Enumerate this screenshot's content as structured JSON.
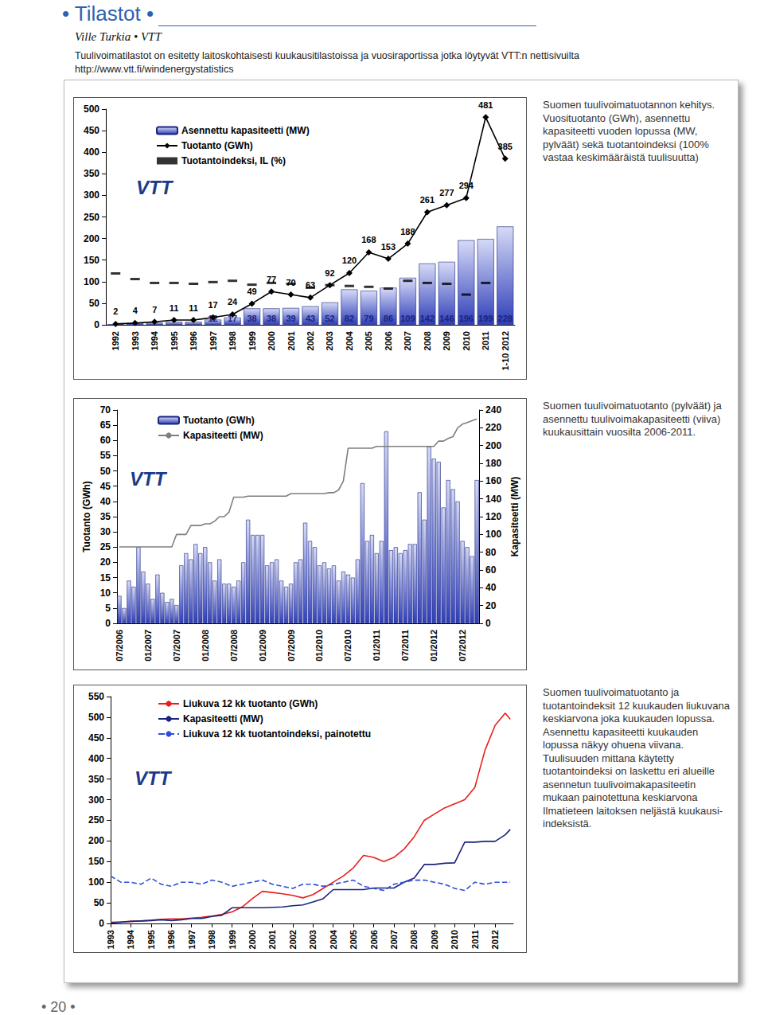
{
  "page": {
    "section": "• Tilastot •",
    "byline": "Ville Turkia • VTT",
    "intro": "Tuulivoimatilastot on esitetty laitoskohtaisesti kuukausitilastoissa ja vuosiraportissa jotka löytyvät VTT:n nettisivuilta http://www.vtt.fi/windenergystatistics",
    "page_number": "• 20 •",
    "logo": "VTT",
    "captions": [
      "Suomen tuulivoimatuotannon kehitys. Vuosituotanto (GWh), asennettu kapasiteetti vuoden lopussa (MW, pylväät) sekä tuotantoindeksi (100% vastaa keskimääräistä tuulisuutta)",
      "Suomen tuulivoimatuotanto (pylväät) ja asennettu tuulivoimakapasiteetti (viiva) kuukausittain vuosilta 2006-2011.",
      "Suomen tuulivoimatuotanto ja tuotantoindeksit 12 kuukauden liukuvana keskiarvona joka kuukauden lopussa. Asennettu kapasiteetti kuukauden lopussa näkyy ohuena viivana. Tuulisuuden mittana käytetty tuotantoindeksi on laskettu eri alueille asennetun tuulivoimakapasiteetin mukaan painotettuna keskiarvona Ilmatieteen laitoksen neljästä kuukausi-indeksistä."
    ]
  },
  "chart_data": [
    {
      "type": "bar",
      "categories": [
        "1992",
        "1993",
        "1994",
        "1995",
        "1996",
        "1997",
        "1998",
        "1999",
        "2000",
        "2001",
        "2002",
        "2003",
        "2004",
        "2005",
        "2006",
        "2007",
        "2008",
        "2009",
        "2010",
        "2011",
        "1-10 2012"
      ],
      "series": [
        {
          "name": "Asennettu kapasiteetti (MW)",
          "type": "bar",
          "color": "#2f3fb8",
          "data_labels": true,
          "values": [
            1,
            4,
            5,
            7,
            7,
            12,
            17,
            38,
            38,
            39,
            43,
            52,
            82,
            79,
            86,
            109,
            142,
            146,
            196,
            199,
            228
          ],
          "value_labels": [
            null,
            null,
            null,
            null,
            null,
            "12",
            "17",
            "38",
            "38",
            "39",
            "43",
            "52",
            "82",
            "79",
            "86",
            "109",
            "142",
            "146",
            "196",
            "199",
            "228"
          ]
        },
        {
          "name": "Tuotanto (GWh)",
          "type": "line",
          "color": "#000000",
          "marker": "diamond",
          "data_labels": true,
          "values": [
            2,
            4,
            7,
            11,
            11,
            17,
            24,
            49,
            77,
            70,
            63,
            92,
            120,
            168,
            153,
            188,
            261,
            277,
            294,
            481,
            385
          ]
        },
        {
          "name": "Tuotantoindeksi, IL (%)",
          "type": "scatter",
          "color": "#000000",
          "marker": "dash",
          "data_labels": false,
          "values": [
            119,
            106,
            97,
            97,
            95,
            99,
            102,
            93,
            97,
            95,
            86,
            92,
            90,
            88,
            84,
            102,
            97,
            95,
            70,
            97,
            null
          ]
        }
      ],
      "ylim": [
        0,
        500
      ],
      "yticks": [
        0,
        50,
        100,
        150,
        200,
        250,
        300,
        350,
        400,
        450,
        500
      ],
      "legend": "upper left",
      "grid": false
    },
    {
      "type": "bar",
      "categories": [
        "07/2006",
        null,
        null,
        null,
        null,
        null,
        "01/2007",
        null,
        null,
        null,
        null,
        null,
        "07/2007",
        null,
        null,
        null,
        null,
        null,
        "01/2008",
        null,
        null,
        null,
        null,
        null,
        "07/2008",
        null,
        null,
        null,
        null,
        null,
        "01/2009",
        null,
        null,
        null,
        null,
        null,
        "07/2009",
        null,
        null,
        null,
        null,
        null,
        "01/2010",
        null,
        null,
        null,
        null,
        null,
        "07/2010",
        null,
        null,
        null,
        null,
        null,
        "01/2011",
        null,
        null,
        null,
        null,
        null,
        "07/2011",
        null,
        null,
        null,
        null,
        null,
        "01/2012",
        null,
        null,
        null,
        null,
        null,
        "07/2012",
        null,
        null,
        null
      ],
      "series": [
        {
          "name": "Tuotanto (GWh)",
          "type": "bar",
          "color": "#2f3fb8",
          "values": [
            9,
            5,
            14,
            12,
            25,
            17,
            13,
            8,
            16,
            10,
            7,
            8,
            6,
            19,
            23,
            21,
            26,
            23,
            25,
            20,
            14,
            21,
            13,
            13,
            12,
            14,
            20,
            34,
            29,
            29,
            29,
            19,
            20,
            21,
            14,
            12,
            13,
            20,
            21,
            33,
            27,
            25,
            19,
            20,
            18,
            19,
            14,
            17,
            16,
            15,
            21,
            46,
            27,
            29,
            23,
            27,
            63,
            24,
            25,
            23,
            24,
            26,
            26,
            43,
            34,
            58,
            54,
            53,
            38,
            47,
            44,
            40,
            27,
            25,
            22,
            47
          ]
        },
        {
          "name": "Kapasiteetti (MW)",
          "type": "line",
          "color": "#7f7f7f",
          "axis": "y2",
          "values": [
            86,
            86,
            86,
            86,
            86,
            86,
            86,
            86,
            86,
            86,
            86,
            86,
            100,
            100,
            100,
            110,
            110,
            110,
            112,
            112,
            115,
            120,
            120,
            125,
            142,
            142,
            142,
            143,
            143,
            143,
            143,
            143,
            143,
            143,
            143,
            143,
            146,
            146,
            146,
            146,
            146,
            146,
            146,
            146,
            147,
            147,
            150,
            160,
            197,
            197,
            197,
            197,
            197,
            197,
            199,
            199,
            199,
            199,
            199,
            199,
            199,
            199,
            199,
            199,
            199,
            199,
            199,
            205,
            205,
            208,
            210,
            220,
            224,
            226,
            228,
            230
          ]
        }
      ],
      "ylabel": "Tuotanto (GWh)",
      "ylim": [
        0,
        70
      ],
      "yticks": [
        0,
        5,
        10,
        15,
        20,
        25,
        30,
        35,
        40,
        45,
        50,
        55,
        60,
        65,
        70
      ],
      "y2label": "Kapasiteetti (MW)",
      "y2lim": [
        0,
        240
      ],
      "y2ticks": [
        0,
        20,
        40,
        60,
        80,
        100,
        120,
        140,
        160,
        180,
        200,
        220,
        240
      ],
      "legend": "upper left",
      "grid": false
    },
    {
      "type": "line",
      "x": [
        1993,
        1993.5,
        1994,
        1994.5,
        1995,
        1995.5,
        1996,
        1996.5,
        1997,
        1997.5,
        1998,
        1998.5,
        1999,
        1999.5,
        2000,
        2000.5,
        2001,
        2001.5,
        2002,
        2002.5,
        2003,
        2003.5,
        2004,
        2004.5,
        2005,
        2005.5,
        2006,
        2006.5,
        2007,
        2007.5,
        2008,
        2008.5,
        2009,
        2009.5,
        2010,
        2010.5,
        2011,
        2011.5,
        2012,
        2012.5,
        2012.75
      ],
      "series": [
        {
          "name": "Liukuva 12 kk tuotanto (GWh)",
          "color": "#e8201c",
          "line_style": "solid",
          "values": [
            3,
            4,
            5,
            6,
            8,
            10,
            11,
            11,
            13,
            15,
            18,
            22,
            28,
            40,
            60,
            78,
            75,
            72,
            68,
            62,
            70,
            85,
            100,
            115,
            135,
            165,
            160,
            150,
            160,
            180,
            210,
            250,
            265,
            280,
            290,
            300,
            330,
            420,
            480,
            510,
            495
          ]
        },
        {
          "name": "Kapasiteetti (MW)",
          "color": "#1a237e",
          "line_style": "solid",
          "values": [
            1,
            3,
            5,
            6,
            7,
            9,
            7,
            9,
            12,
            12,
            17,
            20,
            38,
            38,
            38,
            38,
            39,
            40,
            43,
            45,
            52,
            60,
            82,
            82,
            82,
            82,
            86,
            86,
            86,
            100,
            110,
            143,
            143,
            146,
            147,
            197,
            197,
            199,
            199,
            215,
            228
          ]
        },
        {
          "name": "Liukuva 12 kk tuotantoindeksi, painotettu",
          "color": "#2b4fd8",
          "line_style": "dashed",
          "values": [
            115,
            100,
            100,
            95,
            110,
            95,
            90,
            100,
            100,
            95,
            105,
            100,
            90,
            95,
            100,
            105,
            95,
            90,
            85,
            95,
            95,
            90,
            95,
            100,
            105,
            90,
            85,
            80,
            95,
            100,
            105,
            105,
            100,
            95,
            85,
            80,
            100,
            95,
            100,
            100,
            100
          ]
        }
      ],
      "xlim": [
        1993,
        2012.9
      ],
      "xticks": [
        1993,
        1994,
        1995,
        1996,
        1997,
        1998,
        1999,
        2000,
        2001,
        2002,
        2003,
        2004,
        2005,
        2006,
        2007,
        2008,
        2009,
        2010,
        2011,
        2012
      ],
      "ylim": [
        0,
        550
      ],
      "yticks": [
        0,
        50,
        100,
        150,
        200,
        250,
        300,
        350,
        400,
        450,
        500,
        550
      ],
      "legend": "upper left",
      "grid": false
    }
  ]
}
